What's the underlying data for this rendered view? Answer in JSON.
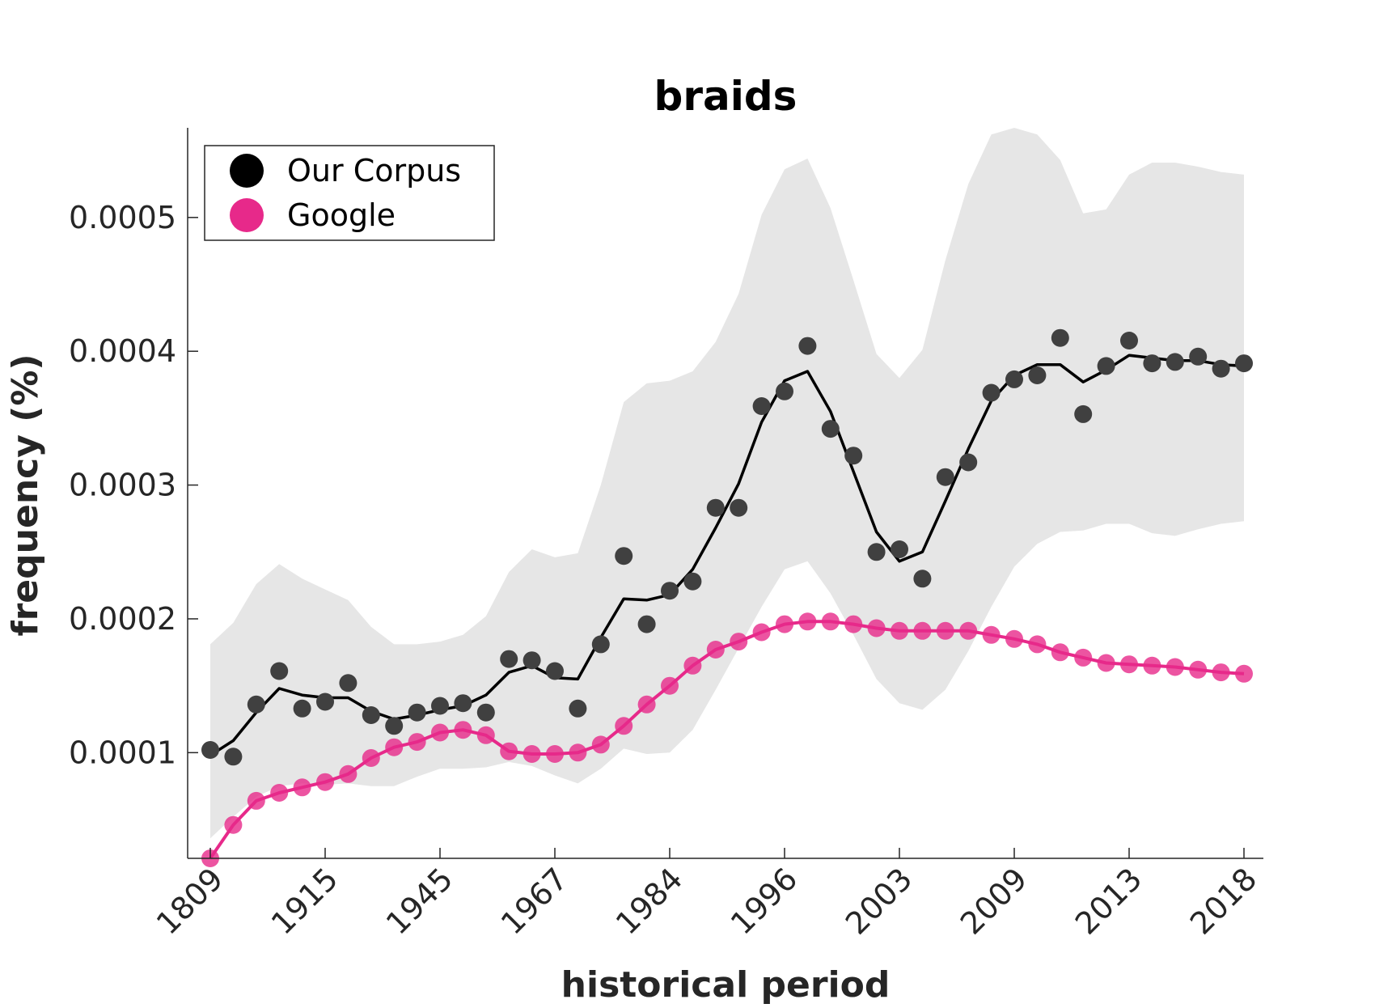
{
  "chart_data": {
    "type": "line",
    "title": "braids",
    "xlabel": "historical period",
    "ylabel": "frequency (%)",
    "x_tick_labels": [
      "1809",
      "1915",
      "1945",
      "1967",
      "1984",
      "1996",
      "2003",
      "2009",
      "2013",
      "2018"
    ],
    "y_ticks": [
      0.0001,
      0.0002,
      0.0003,
      0.0004,
      0.0005
    ],
    "y_tick_labels": [
      "0.0001",
      "0.0002",
      "0.0003",
      "0.0004",
      "0.0005"
    ],
    "ylim": [
      2.1e-05,
      0.000567
    ],
    "legend": {
      "placement": "top-left",
      "entries": [
        "Our Corpus",
        "Google"
      ]
    },
    "series": [
      {
        "name": "Our Corpus",
        "color": "#000000",
        "marker_color": "#404040",
        "points": [
          0.000102,
          9.7e-05,
          0.000136,
          0.000161,
          0.000133,
          0.000138,
          0.000152,
          0.000128,
          0.00012,
          0.00013,
          0.000135,
          0.000137,
          0.00013,
          0.00017,
          0.000169,
          0.000161,
          0.000133,
          0.000181,
          0.000247,
          0.000196,
          0.000221,
          0.000228,
          0.000283,
          0.000283,
          0.000359,
          0.00037,
          0.000404,
          0.000342,
          0.000322,
          0.00025,
          0.000252,
          0.00023,
          0.000306,
          0.000317,
          0.000369,
          0.000379,
          0.000382,
          0.00041,
          0.000353,
          0.000389,
          0.000408,
          0.000391,
          0.000392,
          0.000396,
          0.000387,
          0.000391
        ],
        "smoothed": [
          9.8e-05,
          0.000109,
          0.00013,
          0.000148,
          0.000143,
          0.000141,
          0.000141,
          0.000131,
          0.000125,
          0.000128,
          0.000132,
          0.000135,
          0.000143,
          0.00016,
          0.000165,
          0.000156,
          0.000155,
          0.000186,
          0.000215,
          0.000214,
          0.000218,
          0.000237,
          0.000268,
          0.000301,
          0.000347,
          0.000378,
          0.000385,
          0.000355,
          0.00031,
          0.000265,
          0.000243,
          0.00025,
          0.000288,
          0.000327,
          0.000363,
          0.000382,
          0.00039,
          0.00039,
          0.000377,
          0.000386,
          0.000397,
          0.000395,
          0.000393,
          0.000393,
          0.00039,
          0.000389
        ],
        "band_upper": [
          0.000181,
          0.000197,
          0.000226,
          0.000241,
          0.00023,
          0.000222,
          0.000214,
          0.000194,
          0.000181,
          0.000181,
          0.000183,
          0.000188,
          0.000202,
          0.000235,
          0.000252,
          0.000246,
          0.000249,
          0.0003,
          0.000362,
          0.000376,
          0.000378,
          0.000385,
          0.000407,
          0.000443,
          0.000502,
          0.000536,
          0.000544,
          0.000507,
          0.000453,
          0.000398,
          0.00038,
          0.000401,
          0.000468,
          0.000525,
          0.000562,
          0.000567,
          0.000562,
          0.000543,
          0.000503,
          0.000506,
          0.000532,
          0.000541,
          0.000541,
          0.000538,
          0.000534,
          0.000532
        ],
        "band_lower": [
          3.6e-05,
          5.2e-05,
          6.7e-05,
          7.5e-05,
          7.7e-05,
          7.6e-05,
          7.7e-05,
          7.5e-05,
          7.5e-05,
          8.2e-05,
          8.8e-05,
          8.8e-05,
          8.9e-05,
          9.3e-05,
          9e-05,
          8.3e-05,
          7.7e-05,
          8.8e-05,
          0.000103,
          9.9e-05,
          0.0001,
          0.000117,
          0.000147,
          0.000178,
          0.000209,
          0.000237,
          0.000243,
          0.000219,
          0.000188,
          0.000155,
          0.000137,
          0.000132,
          0.000147,
          0.000176,
          0.000209,
          0.000239,
          0.000256,
          0.000265,
          0.000266,
          0.000271,
          0.000271,
          0.000264,
          0.000262,
          0.000267,
          0.000271,
          0.000273
        ]
      },
      {
        "name": "Google",
        "color": "#e7298a",
        "points": [
          2.1e-05,
          4.6e-05,
          6.4e-05,
          7e-05,
          7.4e-05,
          7.8e-05,
          8.4e-05,
          9.6e-05,
          0.000104,
          0.000108,
          0.000115,
          0.000117,
          0.000113,
          0.000101,
          9.9e-05,
          9.9e-05,
          0.0001,
          0.000106,
          0.00012,
          0.000136,
          0.00015,
          0.000165,
          0.000177,
          0.000183,
          0.00019,
          0.000196,
          0.000198,
          0.000198,
          0.000196,
          0.000193,
          0.000191,
          0.000191,
          0.000191,
          0.000191,
          0.000188,
          0.000185,
          0.000181,
          0.000175,
          0.000171,
          0.000167,
          0.000166,
          0.000165,
          0.000164,
          0.000162,
          0.00016,
          0.000159
        ]
      }
    ]
  }
}
